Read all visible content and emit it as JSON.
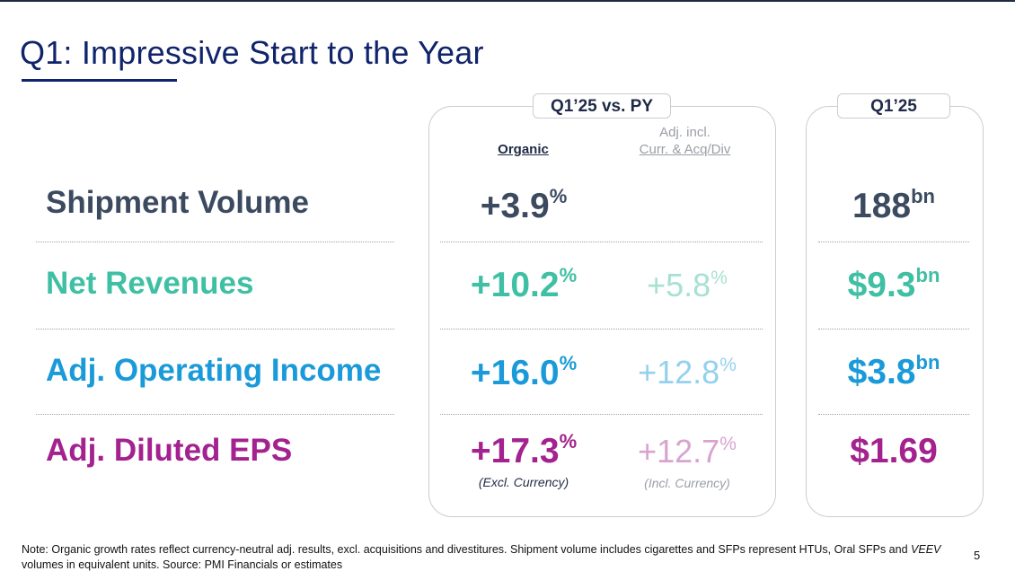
{
  "title": "Q1: Impressive Start to the Year",
  "colors": {
    "title": "#10246b",
    "shipment": "#3b4a5f",
    "revenues": "#3fbfa3",
    "revenues_light": "#a6e1d3",
    "operating": "#1a9ad9",
    "operating_light": "#93d1ee",
    "eps": "#a3228f",
    "eps_light": "#d9a3cf"
  },
  "panels": {
    "main_tab": "Q1’25 vs. PY",
    "q1_tab": "Q1’25",
    "col_organic": "Organic",
    "col_adj_line1": "Adj. incl.",
    "col_adj_line2": "Curr. & Acq/Div"
  },
  "rows": [
    {
      "label": "Shipment Volume",
      "organic": "+3.9",
      "organic_suffix": "%",
      "adj": "",
      "adj_suffix": "",
      "q1": "188",
      "q1_suffix": "bn"
    },
    {
      "label": "Net Revenues",
      "organic": "+10.2",
      "organic_suffix": "%",
      "adj": "+5.8",
      "adj_suffix": "%",
      "q1": "$9.3",
      "q1_suffix": "bn"
    },
    {
      "label": "Adj. Operating Income",
      "organic": "+16.0",
      "organic_suffix": "%",
      "adj": "+12.8",
      "adj_suffix": "%",
      "q1": "$3.8",
      "q1_suffix": "bn"
    },
    {
      "label": "Adj. Diluted EPS",
      "organic": "+17.3",
      "organic_suffix": "%",
      "adj": "+12.7",
      "adj_suffix": "%",
      "q1": "$1.69",
      "q1_suffix": "",
      "organic_note": "(Excl. Currency)",
      "adj_note": "(Incl. Currency)"
    }
  ],
  "footnote": {
    "part1": "Note: Organic growth rates reflect currency-neutral adj. results, excl. acquisitions and divestitures. Shipment volume includes cigarettes and SFPs represent HTUs, Oral SFPs and ",
    "veev": "VEEV",
    "part2": " volumes in equivalent units. Source: PMI Financials or estimates"
  },
  "page_number": "5"
}
